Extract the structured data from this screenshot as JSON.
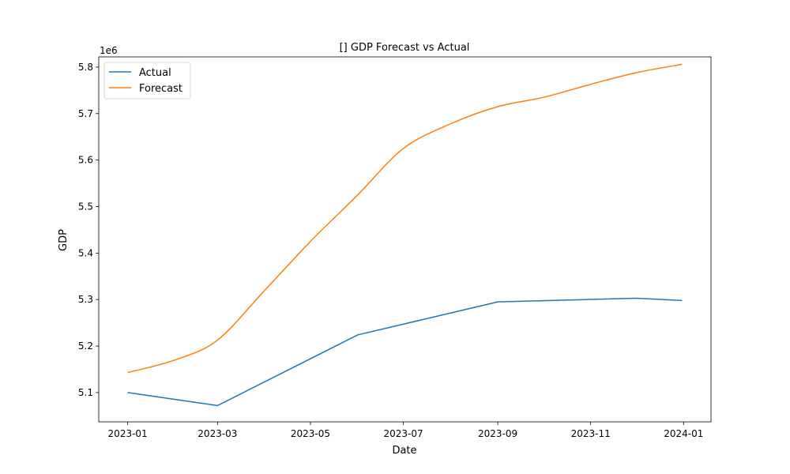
{
  "chart_data": {
    "type": "line",
    "title": "[] GDP Forecast vs Actual",
    "xlabel": "Date",
    "ylabel": "GDP",
    "y_offset_text": "1e6",
    "xlim": [
      "2022-12-13",
      "2024-01-19"
    ],
    "ylim": [
      5.037,
      5.822
    ],
    "y_scale_note": "values shown in units of 1e6",
    "x_ticks": [
      "2023-01",
      "2023-03",
      "2023-05",
      "2023-07",
      "2023-09",
      "2023-11",
      "2024-01"
    ],
    "y_ticks": [
      5.1,
      5.2,
      5.3,
      5.4,
      5.5,
      5.6,
      5.7,
      5.8
    ],
    "grid": false,
    "legend_position": "top-left",
    "series": [
      {
        "name": "Actual",
        "color": "#1f77b4",
        "points": [
          {
            "x": "2023-01-01",
            "y": 5.1
          },
          {
            "x": "2023-03-01",
            "y": 5.072
          },
          {
            "x": "2023-06-01",
            "y": 5.224
          },
          {
            "x": "2023-09-01",
            "y": 5.295
          },
          {
            "x": "2023-12-01",
            "y": 5.303
          },
          {
            "x": "2023-12-31",
            "y": 5.298
          }
        ]
      },
      {
        "name": "Forecast",
        "color": "#ff7f0e",
        "points": [
          {
            "x": "2023-01-01",
            "y": 5.143
          },
          {
            "x": "2023-02-01",
            "y": 5.17
          },
          {
            "x": "2023-03-01",
            "y": 5.213
          },
          {
            "x": "2023-04-01",
            "y": 5.32
          },
          {
            "x": "2023-05-01",
            "y": 5.425
          },
          {
            "x": "2023-06-01",
            "y": 5.525
          },
          {
            "x": "2023-07-01",
            "y": 5.625
          },
          {
            "x": "2023-08-01",
            "y": 5.678
          },
          {
            "x": "2023-09-01",
            "y": 5.715
          },
          {
            "x": "2023-10-01",
            "y": 5.735
          },
          {
            "x": "2023-11-01",
            "y": 5.763
          },
          {
            "x": "2023-12-01",
            "y": 5.788
          },
          {
            "x": "2023-12-31",
            "y": 5.806
          }
        ]
      }
    ]
  }
}
